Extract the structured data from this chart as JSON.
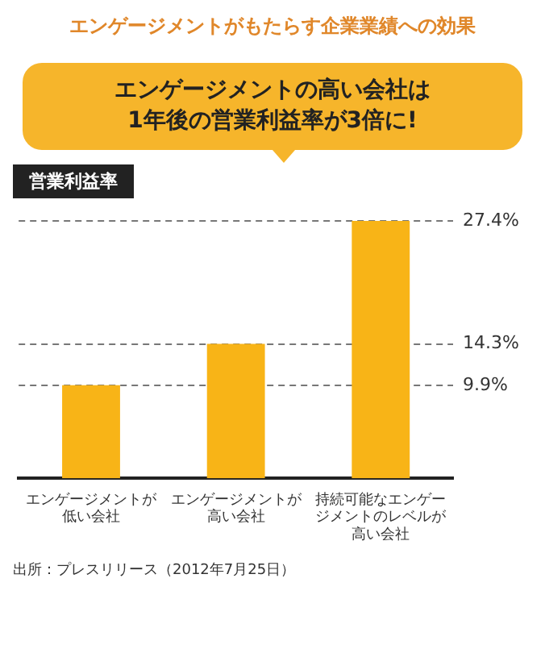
{
  "chart_data": {
    "type": "bar",
    "title": "エンゲージメントがもたらす企業業績への効果",
    "subtitle": "エンゲージメントの高い会社は\n1年後の営業利益率が3倍に!",
    "ylabel": "営業利益率",
    "categories": [
      "エンゲージメントが低い会社",
      "エンゲージメントが高い会社",
      "持続可能なエンゲージメントのレベルが高い会社"
    ],
    "values": [
      9.9,
      14.3,
      27.4
    ],
    "color": "#f8b417",
    "ylim": [
      0,
      27.4
    ],
    "yticks": [
      {
        "value": 9.9,
        "label": "9.9%"
      },
      {
        "value": 14.3,
        "label": "14.3%"
      },
      {
        "value": 27.4,
        "label": "27.4%"
      }
    ],
    "grid": "y",
    "line_style": "dashed",
    "annotations": [
      "出所：プレスリリース（2012年7月25日）"
    ]
  }
}
